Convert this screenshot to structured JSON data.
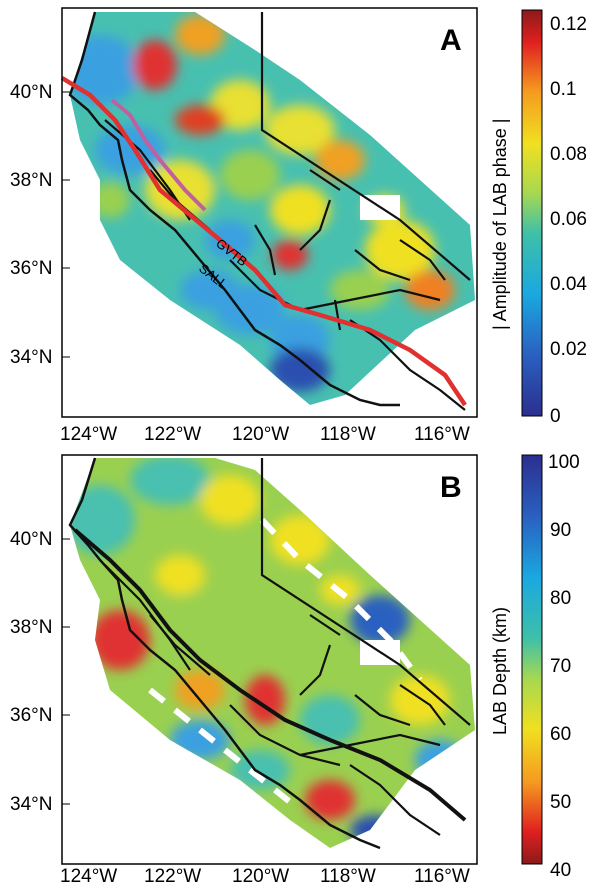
{
  "panels": [
    {
      "label": "A",
      "lat_ticks": [
        "40°N",
        "38°N",
        "36°N",
        "34°N"
      ],
      "lon_ticks": [
        "124°W",
        "122°W",
        "120°W",
        "118°W",
        "116°W"
      ],
      "colorbar": {
        "label": "| Amplitude of LAB phase |",
        "ticks": [
          "0.12",
          "0.1",
          "0.08",
          "0.06",
          "0.04",
          "0.02",
          "0"
        ],
        "range": [
          0,
          0.125
        ],
        "scale": "jet"
      },
      "fault_labels": [
        "GVTB",
        "SALL"
      ]
    },
    {
      "label": "B",
      "lat_ticks": [
        "40°N",
        "38°N",
        "36°N",
        "34°N"
      ],
      "lon_ticks": [
        "124°W",
        "122°W",
        "120°W",
        "118°W",
        "116°W"
      ],
      "colorbar": {
        "label": "LAB Depth (km)",
        "ticks": [
          "100",
          "90",
          "80",
          "70",
          "60",
          "50",
          "40"
        ],
        "range": [
          40,
          100
        ],
        "scale": "jet-reversed"
      }
    }
  ],
  "colors": {
    "plate_boundary": "#e03030",
    "gvtb_line": "#c060a0",
    "faults": "#000000"
  }
}
